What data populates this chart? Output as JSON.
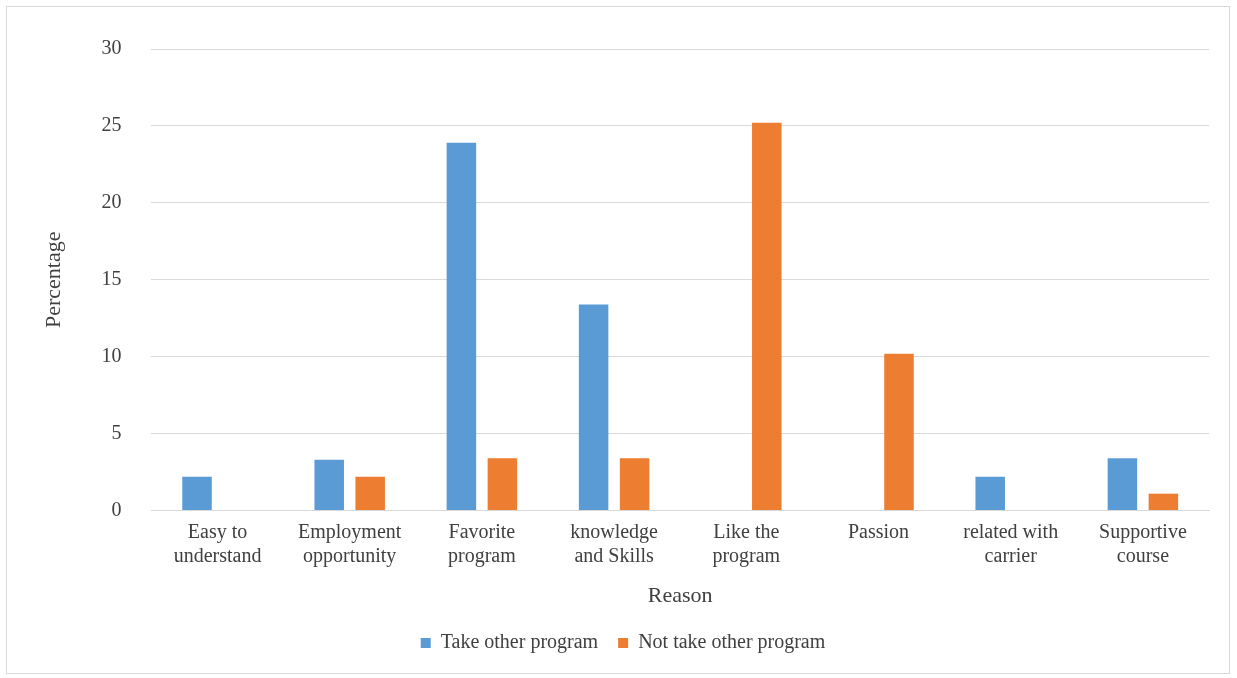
{
  "chart_data": {
    "type": "bar",
    "xlabel": "Reason",
    "ylabel": "Percentage",
    "categories": [
      "Easy to understand",
      "Employment opportunity",
      "Favorite program",
      "knowledge and Skills",
      "Like the program",
      "Passion",
      "related with carrier",
      "Supportive course"
    ],
    "series": [
      {
        "name": "Take other program",
        "color": "#5b9bd5",
        "values": [
          2.2,
          3.3,
          23.9,
          13.4,
          null,
          null,
          2.2,
          3.4
        ]
      },
      {
        "name": "Not take other program",
        "color": "#ed7d31",
        "values": [
          null,
          2.2,
          3.4,
          3.4,
          25.2,
          10.2,
          null,
          1.1
        ]
      }
    ],
    "ylim": [
      0,
      30
    ],
    "yticks": [
      0,
      5,
      10,
      15,
      20,
      25,
      30
    ],
    "grid": "y",
    "legend": "bottom"
  }
}
